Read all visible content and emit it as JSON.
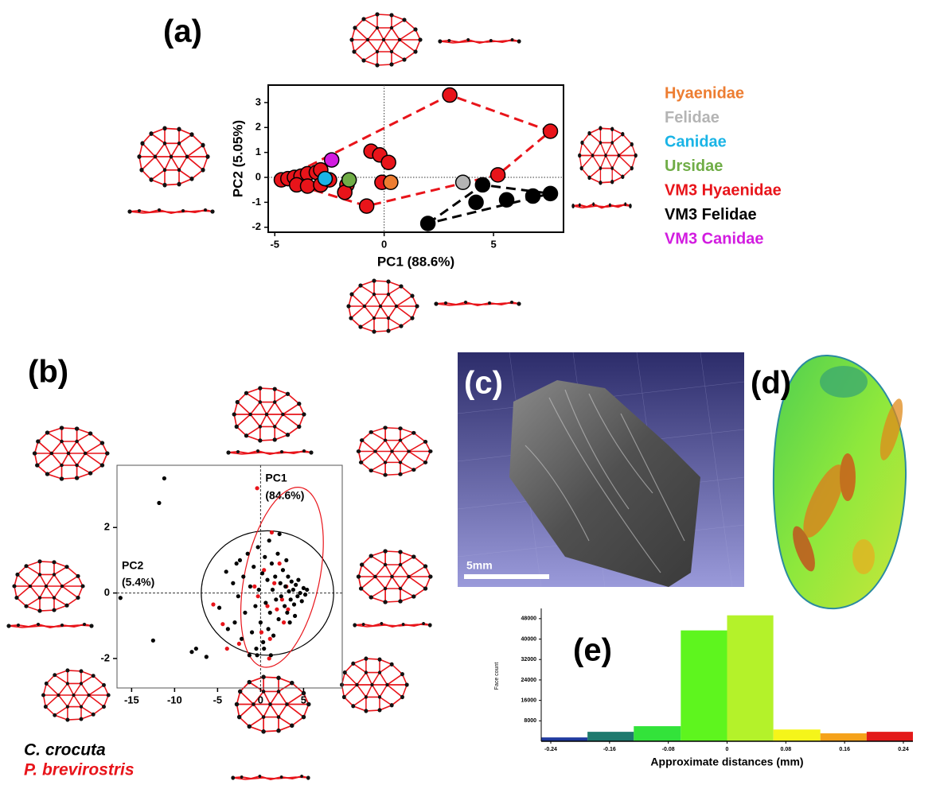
{
  "chart_data": [
    {
      "type": "scatter",
      "label": "(a)",
      "x_label": "PC1 (88.6%)",
      "y_label": "PC2 (5.05%)",
      "xlim": [
        -5.3,
        8.2
      ],
      "ylim": [
        -2.2,
        3.7
      ],
      "xticks": [
        -5,
        0,
        5
      ],
      "yticks": [
        -2,
        -1,
        0,
        1,
        2,
        3
      ],
      "zero_lines": true,
      "series": [
        {
          "name": "Hyaenidae",
          "color": "#ed7d31",
          "x": [
            0.3
          ],
          "values": [
            -0.2
          ]
        },
        {
          "name": "Felidae",
          "color": "#b4b4b4",
          "x": [
            3.6
          ],
          "values": [
            -0.2
          ]
        },
        {
          "name": "Canidae",
          "color": "#1ab4e6",
          "x": [
            -2.7
          ],
          "values": [
            -0.05
          ]
        },
        {
          "name": "Ursidae",
          "color": "#70ad47",
          "x": [
            -1.6
          ],
          "values": [
            -0.1
          ]
        },
        {
          "name": "VM3 Hyaenidae",
          "color": "#e8141a",
          "hull": true,
          "x": [
            -4.7,
            -4.4,
            -4.1,
            -3.8,
            -3.5,
            -3.1,
            -2.9,
            -4.0,
            -3.5,
            -2.9,
            -2.5,
            -1.7,
            -1.8,
            -0.6,
            -0.2,
            0.2,
            -0.1,
            -0.8,
            3.0,
            7.6,
            5.2
          ],
          "values": [
            -0.1,
            -0.05,
            0,
            0.05,
            0.15,
            0.2,
            0.3,
            -0.3,
            -0.35,
            -0.3,
            -0.1,
            -0.3,
            -0.6,
            1.05,
            0.9,
            0.6,
            -0.2,
            -1.15,
            3.3,
            1.85,
            0.1
          ]
        },
        {
          "name": "VM3 Felidae",
          "color": "#000000",
          "hull": true,
          "x": [
            2.0,
            4.2,
            4.5,
            5.6,
            6.8,
            7.6
          ],
          "values": [
            -1.85,
            -1.0,
            -0.3,
            -0.9,
            -0.75,
            -0.65
          ]
        },
        {
          "name": "VM3 Canidae",
          "color": "#d21ce0",
          "x": [
            -2.4
          ],
          "values": [
            0.7
          ]
        }
      ]
    },
    {
      "type": "scatter",
      "label": "(b)",
      "x_label": [
        "PC1",
        "(84.6%)"
      ],
      "y_label": [
        "PC2",
        "(5.4%)"
      ],
      "xlim": [
        -16.7,
        9.5
      ],
      "ylim": [
        -2.9,
        3.9
      ],
      "xticks": [
        -15,
        -10,
        -5,
        0,
        5
      ],
      "yticks": [
        -2,
        0,
        2
      ],
      "zero_lines": true,
      "series": [
        {
          "name": "C. crocuta",
          "color": "#000000",
          "ellipse": {
            "cx": 0.8,
            "cy": 0,
            "rx": 7.7,
            "ry": 1.9,
            "angle": 0
          },
          "x": [
            -11.2,
            -11.8,
            -16.3,
            -12.5,
            -8,
            -7.5,
            -6.3,
            -4.8,
            -4,
            -3.8,
            -3.2,
            -3,
            -2.6,
            -2.4,
            -2.2,
            -2,
            -1.8,
            -1.5,
            -1.3,
            -1.2,
            -1,
            -0.8,
            -0.6,
            -0.5,
            -0.3,
            -0.2,
            0,
            0.2,
            0.3,
            0.5,
            0.6,
            0.8,
            0.9,
            1.0,
            1.1,
            1.3,
            1.4,
            1.5,
            1.7,
            1.8,
            2.0,
            2.1,
            2.3,
            2.4,
            2.6,
            2.8,
            2.9,
            3.1,
            3.2,
            3.3,
            3.5,
            3.6,
            3.8,
            3.9,
            4.1,
            4.3,
            4.4,
            4.6,
            4.8,
            5.0,
            5.2,
            5.4,
            3.0,
            2.2,
            -0.4,
            0.4,
            1.2,
            3.4,
            4.0,
            -2.8
          ],
          "values": [
            3.5,
            2.75,
            -0.15,
            -1.45,
            -1.8,
            -1.7,
            -1.95,
            -0.45,
            0.65,
            -1.1,
            0.3,
            -0.9,
            -0.1,
            1.0,
            -1.4,
            0.5,
            -0.6,
            1.2,
            -1.9,
            0.2,
            -1.2,
            0.8,
            -0.4,
            -1.7,
            1.4,
            0.1,
            -0.9,
            0.6,
            -1.5,
            1.1,
            -0.3,
            0.4,
            -1.1,
            1.6,
            -0.6,
            0.9,
            0.1,
            -1.3,
            0.5,
            -0.2,
            1.2,
            -0.8,
            0.3,
            -0.1,
            0.7,
            -0.4,
            0.2,
            -0.6,
            0.5,
            0.05,
            -0.2,
            0.35,
            0.1,
            -0.35,
            0.25,
            -0.1,
            0.4,
            0.0,
            -0.25,
            0.15,
            -0.05,
            0.1,
            1.0,
            1.8,
            -1.9,
            -1.7,
            -1.9,
            -0.9,
            -0.7,
            0.9
          ]
        },
        {
          "name": "P. brevirostris",
          "color": "#e8141a",
          "ellipse": {
            "cx": 2.5,
            "cy": 0.48,
            "rx": 4.35,
            "ry": 2.8,
            "angle": 12
          },
          "x": [
            -0.4,
            1.3,
            -5.5,
            -4.4,
            -2.5,
            -3.9,
            -0.3,
            0.4,
            0.8,
            1.1,
            1.6,
            1.9,
            2.2,
            2.5,
            2.7,
            3.0,
            3.2,
            -0.7,
            0.1,
            1.0
          ],
          "values": [
            3.2,
            1.85,
            -0.35,
            -0.95,
            -1.55,
            -1.7,
            -0.1,
            0.7,
            -0.4,
            -1.4,
            0.3,
            -0.5,
            0.9,
            -0.2,
            -0.9,
            0.2,
            -0.5,
            0.2,
            -1.2,
            -2.0
          ]
        }
      ]
    },
    {
      "type": "histogram",
      "label": "(e)",
      "x_label": "Approximate distances (mm)",
      "y_label": "Face count",
      "bins": [
        -0.253,
        -0.19,
        -0.127,
        -0.063,
        0,
        0.063,
        0.127,
        0.19,
        0.253
      ],
      "values": [
        1500,
        3700,
        5900,
        43400,
        49300,
        4600,
        3100,
        3700
      ],
      "colors": [
        "#1f3a9e",
        "#1e7a6e",
        "#33e33a",
        "#5ef51e",
        "#b4f22a",
        "#f5f51a",
        "#f5a21a",
        "#e31a1a"
      ],
      "xlim": [
        -0.253,
        0.253
      ],
      "ylim": [
        0,
        52000
      ],
      "xticks": [
        -0.24,
        -0.16,
        -0.08,
        0,
        0.08,
        0.16,
        0.24
      ],
      "yticks": [
        8000,
        16000,
        24000,
        32000,
        40000,
        48000
      ]
    }
  ],
  "images": [
    {
      "label": "(c)",
      "scale_bar": "5mm"
    },
    {
      "label": "(d)"
    }
  ]
}
